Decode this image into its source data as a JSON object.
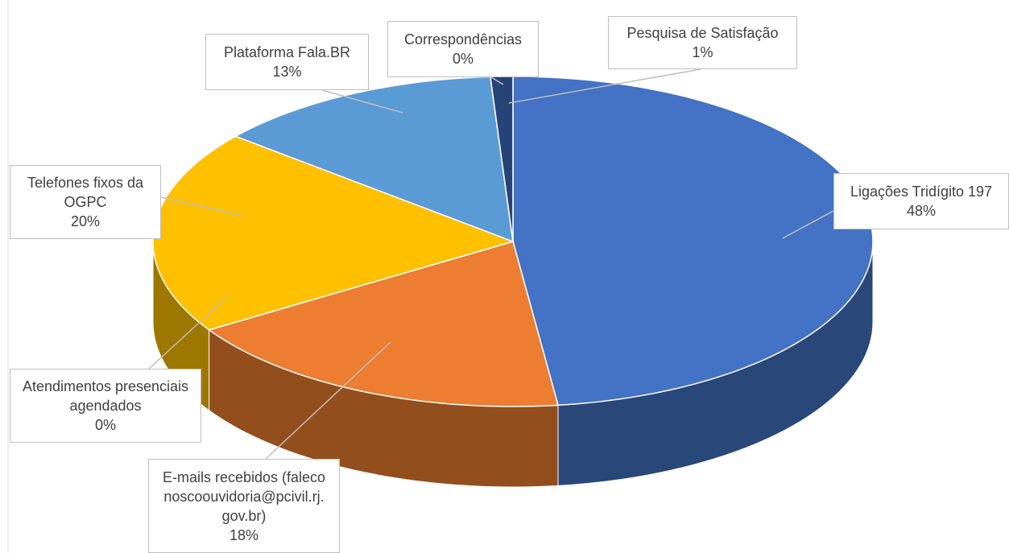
{
  "chart_data": {
    "type": "pie",
    "categories": [
      "Ligações Tridígito 197",
      "E-mails recebidos (faleconoscoouvidoria@pcivil.rj.gov.br)",
      "Atendimentos presenciais agendados",
      "Telefones fixos da OGPC",
      "Plataforma Fala.BR",
      "Correspondências",
      "Pesquisa de Satisfação"
    ],
    "values": [
      48,
      18,
      0,
      20,
      13,
      0,
      1
    ],
    "value_labels": [
      "48%",
      "18%",
      "0%",
      "20%",
      "13%",
      "0%",
      "1%"
    ],
    "colors": [
      "#4472c4",
      "#ed7d31",
      "#a5a5a5",
      "#ffc000",
      "#5b9bd5",
      "#70ad47",
      "#264478"
    ]
  }
}
